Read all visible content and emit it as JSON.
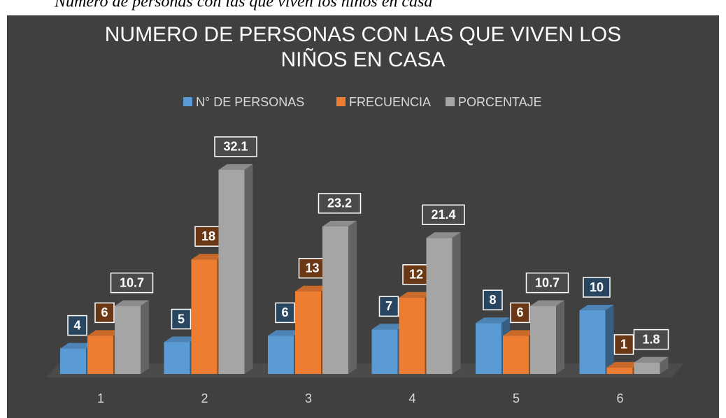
{
  "caption": "Número de personas con las que viven los niños en casa",
  "chart_data": {
    "type": "bar3d",
    "title": "NUMERO DE PERSONAS  CON LAS QUE VIVEN LOS NIÑOS EN CASA",
    "categories": [
      "1",
      "2",
      "3",
      "4",
      "5",
      "6"
    ],
    "legend": "top",
    "series": [
      {
        "name": "N° DE PERSONAS",
        "color": "#5b9bd5",
        "values": [
          4,
          5,
          6,
          7,
          8,
          10
        ]
      },
      {
        "name": "FRECUENCIA",
        "color": "#ed7d31",
        "values": [
          6,
          18,
          13,
          12,
          6,
          1
        ]
      },
      {
        "name": "PORCENTAJE",
        "color": "#a5a5a5",
        "values": [
          10.7,
          32.1,
          23.2,
          21.4,
          10.7,
          1.8
        ]
      }
    ]
  }
}
